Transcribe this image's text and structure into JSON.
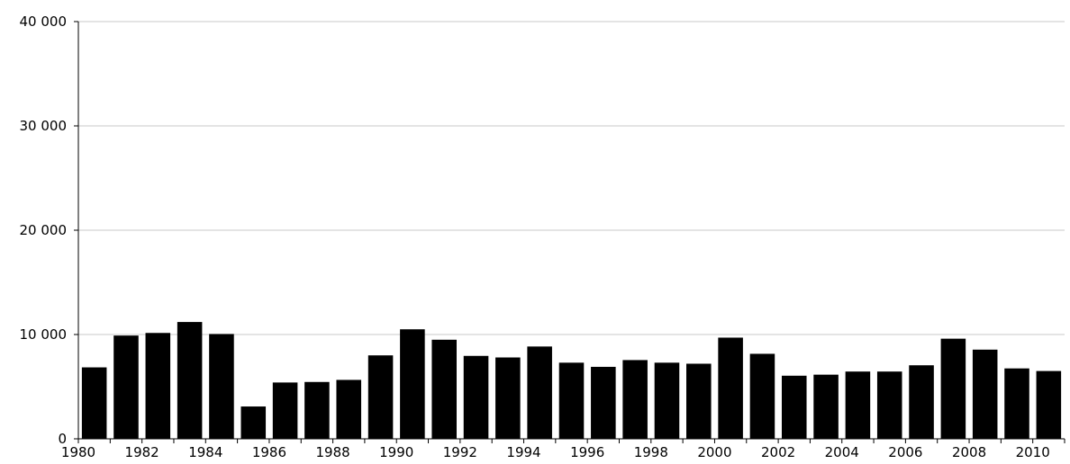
{
  "chart_data": {
    "type": "bar",
    "title": "",
    "xlabel": "",
    "ylabel": "",
    "categories": [
      "1980",
      "1981",
      "1982",
      "1983",
      "1984",
      "1985",
      "1986",
      "1987",
      "1988",
      "1989",
      "1990",
      "1991",
      "1992",
      "1993",
      "1994",
      "1995",
      "1996",
      "1997",
      "1998",
      "1999",
      "2000",
      "2001",
      "2002",
      "2003",
      "2004",
      "2005",
      "2006",
      "2007",
      "2008",
      "2009",
      "2010"
    ],
    "values": [
      6850,
      9900,
      10150,
      11200,
      10050,
      3100,
      5400,
      5450,
      5650,
      8000,
      10500,
      9500,
      7950,
      7800,
      8850,
      7300,
      6900,
      7550,
      7300,
      7200,
      9700,
      8150,
      6050,
      6150,
      6450,
      6450,
      7050,
      9600,
      8550,
      6750,
      6500
    ],
    "ylim": [
      0,
      40000
    ],
    "yticks": [
      0,
      10000,
      20000,
      30000,
      40000
    ],
    "ytick_labels": [
      "0",
      "10 000",
      "20 000",
      "30 000",
      "40 000"
    ],
    "xtick_labels": [
      "1980",
      "1982",
      "1984",
      "1986",
      "1988",
      "1990",
      "1992",
      "1994",
      "1996",
      "1998",
      "2000",
      "2002",
      "2004",
      "2006",
      "2008",
      "2010"
    ],
    "grid": true,
    "bar_color": "#000000",
    "grid_color": "#c8c8c8"
  }
}
